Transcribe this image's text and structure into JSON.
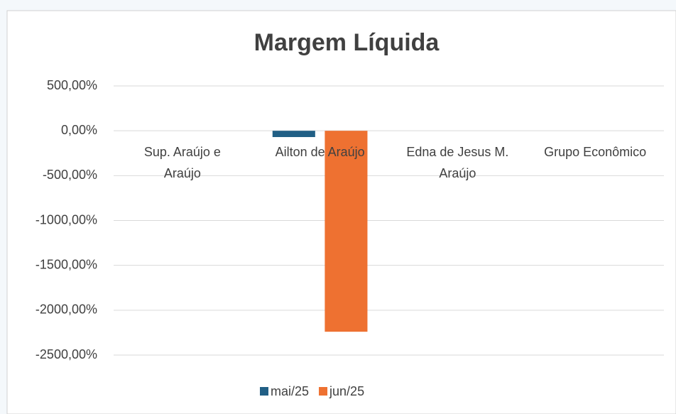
{
  "chart_data": {
    "type": "bar",
    "title": "Margem Líquida",
    "categories": [
      "Sup. Araújo e Araújo",
      "Ailton de Araújo",
      "Edna de Jesus M. Araújo",
      "Grupo Econômico"
    ],
    "series": [
      {
        "name": "mai/25",
        "color": "#215f85",
        "values": [
          0,
          -70,
          0,
          0
        ]
      },
      {
        "name": "jun/25",
        "color": "#ee7131",
        "values": [
          0,
          -2240,
          0,
          0
        ]
      }
    ],
    "ylim": [
      500,
      -2500
    ],
    "yticks": [
      {
        "value": 500,
        "label": "500,00%"
      },
      {
        "value": 0,
        "label": "0,00%"
      },
      {
        "value": -500,
        "label": "-500,00%"
      },
      {
        "value": -1000,
        "label": "-1000,00%"
      },
      {
        "value": -1500,
        "label": "-1500,00%"
      },
      {
        "value": -2000,
        "label": "-2000,00%"
      },
      {
        "value": -2500,
        "label": "-2500,00%"
      }
    ],
    "grid": true,
    "legend": "bottom"
  }
}
